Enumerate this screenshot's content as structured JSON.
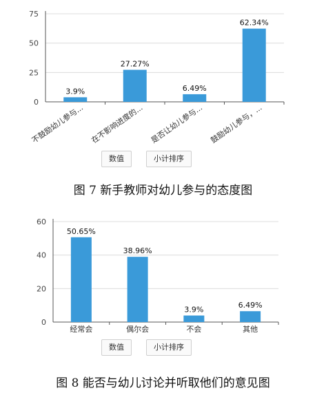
{
  "chart_data": [
    {
      "type": "bar",
      "categories": [
        "不鼓励幼儿参与...",
        "在不影响进度的...",
        "是否让幼儿参与...",
        "鼓励幼儿参与，..."
      ],
      "values": [
        3.9,
        27.27,
        6.49,
        62.34
      ],
      "data_labels": [
        "3.9%",
        "27.27%",
        "6.49%",
        "62.34%"
      ],
      "yticks": [
        0,
        25,
        50,
        75
      ],
      "ylim": [
        0,
        75
      ],
      "bar_color": "#3a9ad9",
      "buttons": [
        "数值",
        "小计排序"
      ],
      "caption": "图 7  新手教师对幼儿参与的态度图"
    },
    {
      "type": "bar",
      "categories": [
        "经常会",
        "偶尔会",
        "不会",
        "其他"
      ],
      "values": [
        50.65,
        38.96,
        3.9,
        6.49
      ],
      "data_labels": [
        "50.65%",
        "38.96%",
        "3.9%",
        "6.49%"
      ],
      "yticks": [
        0,
        20,
        40,
        60
      ],
      "ylim": [
        0,
        60
      ],
      "bar_color": "#3a9ad9",
      "buttons": [
        "数值",
        "小计排序"
      ],
      "caption": "图 8  能否与幼儿讨论并听取他们的意见图"
    }
  ]
}
